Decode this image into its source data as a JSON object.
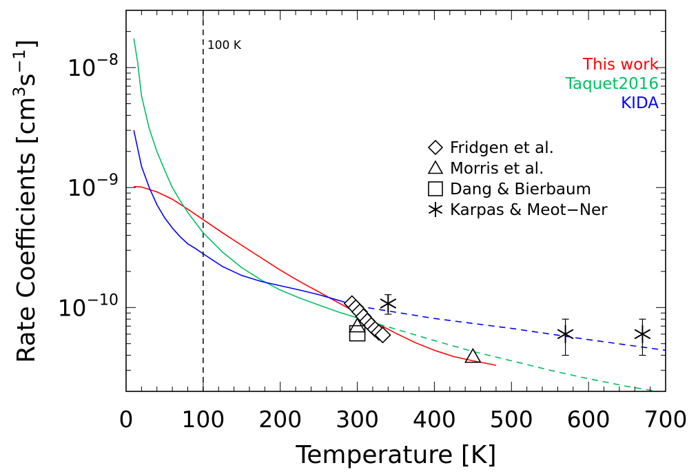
{
  "chart_data": {
    "type": "line",
    "xlabel": "Temperature [K]",
    "ylabel_main": "Rate Coefficients [cm",
    "ylabel_sup1": "3",
    "ylabel_mid": "s",
    "ylabel_sup2": "−1",
    "ylabel_end": "]",
    "xlim": [
      0,
      700
    ],
    "ylim": [
      2e-11,
      3e-08
    ],
    "yscale": "log",
    "xticks": [
      0,
      100,
      200,
      300,
      400,
      500,
      600,
      700
    ],
    "yticks": [
      {
        "value": 1e-08,
        "base": "10",
        "exp": "−8"
      },
      {
        "value": 1e-09,
        "base": "10",
        "exp": "−9"
      },
      {
        "value": 1e-10,
        "base": "10",
        "exp": "−10"
      }
    ],
    "vline": {
      "x": 100,
      "label": "100 K",
      "color": "#000000"
    },
    "series": [
      {
        "name": "This work",
        "color": "#ff0000",
        "style": "solid",
        "x": [
          10,
          20,
          40,
          60,
          80,
          100,
          125,
          150,
          175,
          200,
          225,
          250,
          275,
          300,
          325,
          350,
          375,
          400,
          425,
          450,
          480
        ],
        "y": [
          1.02e-09,
          1.01e-09,
          9.2e-10,
          8e-10,
          6.6e-10,
          5.4e-10,
          4.2e-10,
          3.3e-10,
          2.6e-10,
          2.05e-10,
          1.65e-10,
          1.35e-10,
          1.1e-10,
          9e-11,
          7.4e-11,
          6.1e-11,
          5.1e-11,
          4.4e-11,
          3.9e-11,
          3.6e-11,
          3.3e-11
        ]
      },
      {
        "name": "Taquet2016",
        "color": "#00c060",
        "style": "solid",
        "x": [
          10,
          15,
          20,
          30,
          40,
          50,
          60,
          70,
          80,
          90,
          100,
          125,
          150,
          175,
          200,
          225,
          250,
          275,
          300
        ],
        "y": [
          1.75e-08,
          1.1e-08,
          5.8e-09,
          3.1e-09,
          2e-09,
          1.4e-09,
          1e-09,
          7.8e-10,
          6.2e-10,
          5.1e-10,
          4.2e-10,
          2.9e-10,
          2.15e-10,
          1.7e-10,
          1.4e-10,
          1.2e-10,
          1.05e-10,
          9.2e-11,
          8.2e-11
        ]
      },
      {
        "name": "Taquet2016-ext",
        "color": "#00c060",
        "style": "dashed",
        "x": [
          300,
          350,
          400,
          450,
          500,
          550,
          600,
          650,
          700
        ],
        "y": [
          8.2e-11,
          6.6e-11,
          5.3e-11,
          4.3e-11,
          3.6e-11,
          3e-11,
          2.55e-11,
          2.2e-11,
          1.95e-11
        ]
      },
      {
        "name": "KIDA",
        "color": "#0000ff",
        "style": "solid",
        "x": [
          10,
          20,
          30,
          40,
          50,
          60,
          70,
          80,
          90,
          100,
          125,
          150,
          175,
          200,
          225,
          250,
          275,
          300
        ],
        "y": [
          3e-09,
          1.5e-09,
          1e-09,
          7.2e-10,
          5.6e-10,
          4.6e-10,
          3.9e-10,
          3.4e-10,
          3.1e-10,
          2.8e-10,
          2.2e-10,
          1.85e-10,
          1.65e-10,
          1.52e-10,
          1.4e-10,
          1.28e-10,
          1.15e-10,
          1.03e-10
        ]
      },
      {
        "name": "KIDA-ext",
        "color": "#0000ff",
        "style": "dashed",
        "x": [
          300,
          400,
          500,
          600,
          700
        ],
        "y": [
          1.03e-10,
          8.1e-11,
          6.7e-11,
          5.4e-11,
          4.4e-11
        ]
      }
    ],
    "legend_lines": [
      {
        "label": "This work",
        "color": "#ff0000"
      },
      {
        "label": "Taquet2016",
        "color": "#00c060"
      },
      {
        "label": "KIDA",
        "color": "#0000ff"
      }
    ],
    "legend_markers": [
      {
        "label": "Fridgen et al.",
        "marker": "diamond"
      },
      {
        "label": "Morris et al.",
        "marker": "triangle"
      },
      {
        "label": "Dang & Bierbaum",
        "marker": "square"
      },
      {
        "label": "Karpas & Meot−Ner",
        "marker": "asterisk"
      }
    ],
    "experiments": [
      {
        "name": "Fridgen et al.",
        "marker": "diamond",
        "x": [
          293,
          298,
          303,
          308,
          313,
          318,
          323,
          328,
          333
        ],
        "y": [
          1.08e-10,
          1e-10,
          9.2e-11,
          8.4e-11,
          7.7e-11,
          7.1e-11,
          6.6e-11,
          6.2e-11,
          5.9e-11
        ]
      },
      {
        "name": "Morris et al.",
        "marker": "triangle",
        "x": [
          300,
          450
        ],
        "y": [
          7e-11,
          3.9e-11
        ]
      },
      {
        "name": "Dang & Bierbaum",
        "marker": "square",
        "x": [
          300
        ],
        "y": [
          6.1e-11
        ]
      },
      {
        "name": "Karpas & Meot−Ner",
        "marker": "asterisk",
        "x": [
          340,
          570,
          670
        ],
        "y": [
          1.08e-10,
          6e-11,
          6e-11
        ],
        "err_low": [
          8.8e-11,
          4e-11,
          4e-11
        ],
        "err_high": [
          1.28e-10,
          8e-11,
          8e-11
        ]
      }
    ]
  }
}
